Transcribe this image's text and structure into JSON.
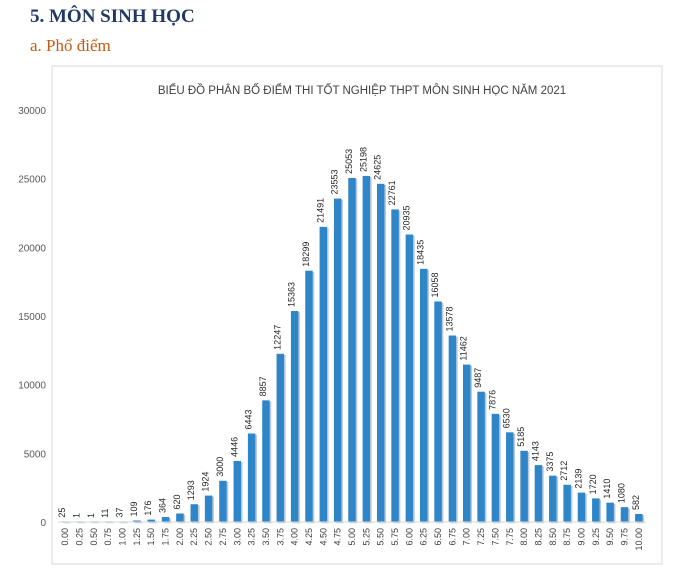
{
  "document": {
    "section_heading": "5.  MÔN SINH HỌC",
    "subsection_heading": "a.  Phổ điểm"
  },
  "chart_data": {
    "type": "bar",
    "title": "BIỂU ĐỒ PHÂN BỐ ĐIỂM THI TỐT NGHIỆP THPT MÔN SINH HỌC NĂM 2021",
    "xlabel": "",
    "ylabel": "",
    "ylim": [
      0,
      30000
    ],
    "yticks": [
      0,
      5000,
      10000,
      15000,
      20000,
      25000,
      30000
    ],
    "grid": false,
    "legend": "none",
    "bar_color": "#2e86c9",
    "categories": [
      "0.00",
      "0.25",
      "0.50",
      "0.75",
      "1.00",
      "1.25",
      "1.50",
      "1.75",
      "2.00",
      "2.25",
      "2.50",
      "2.75",
      "3.00",
      "3.25",
      "3.50",
      "3.75",
      "4.00",
      "4.25",
      "4.50",
      "4.75",
      "5.00",
      "5.25",
      "5.50",
      "5.75",
      "6.00",
      "6.25",
      "6.50",
      "6.75",
      "7.00",
      "7.25",
      "7.50",
      "7.75",
      "8.00",
      "8.25",
      "8.50",
      "8.75",
      "9.00",
      "9.25",
      "9.50",
      "9.75",
      "10.00"
    ],
    "values": [
      25,
      1,
      1,
      11,
      37,
      109,
      176,
      364,
      620,
      1293,
      1924,
      3000,
      4446,
      6443,
      8857,
      12247,
      15363,
      18299,
      21491,
      23553,
      25053,
      25198,
      24625,
      22761,
      20935,
      18435,
      16058,
      13578,
      11462,
      9487,
      7876,
      6530,
      5185,
      4143,
      3375,
      2712,
      2139,
      1720,
      1410,
      1080,
      582
    ]
  }
}
